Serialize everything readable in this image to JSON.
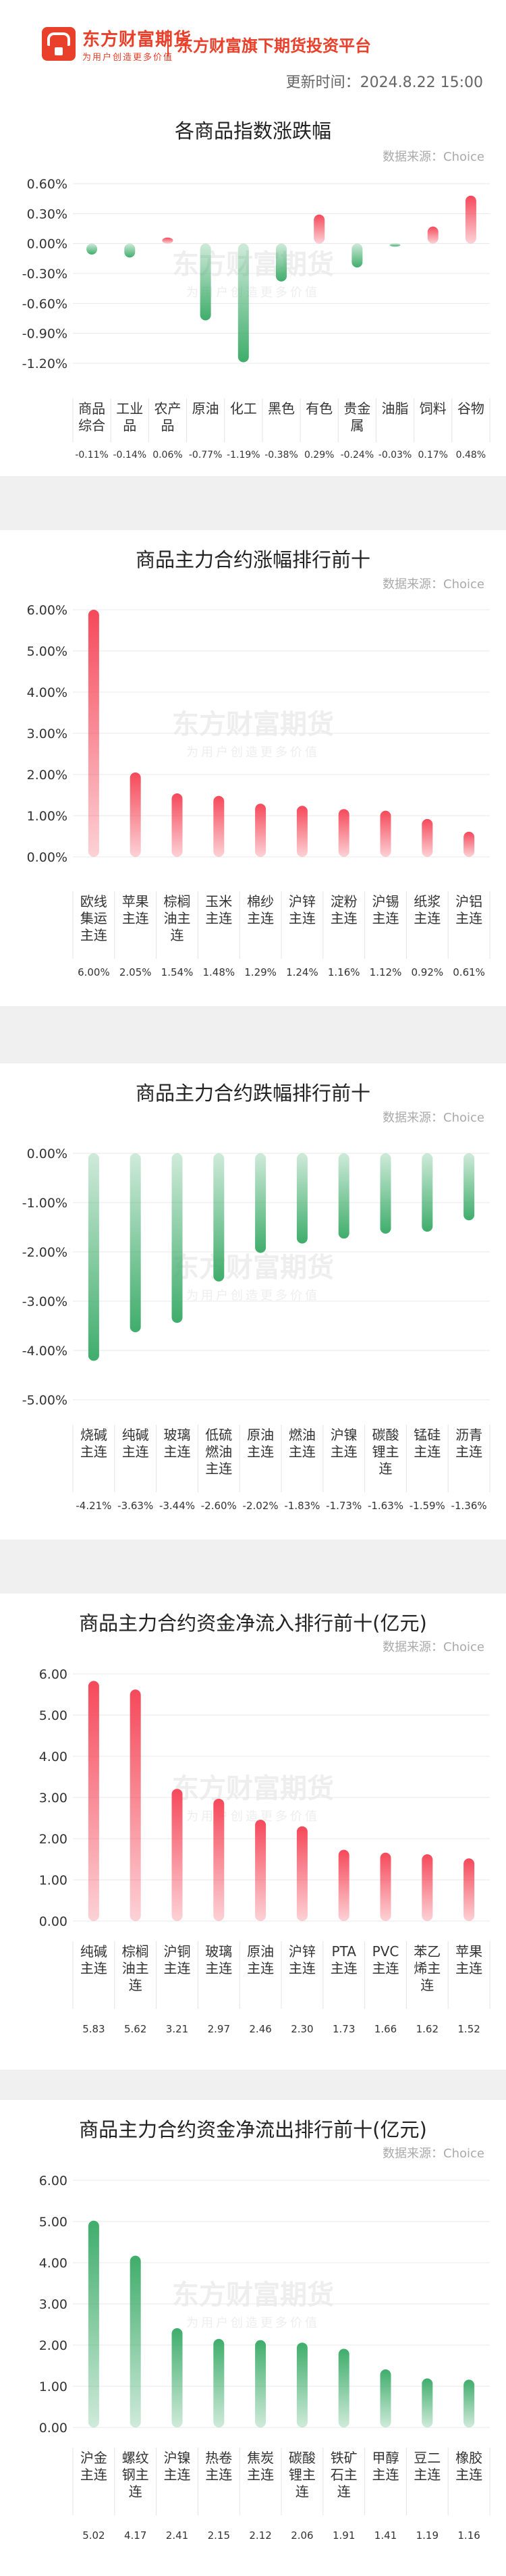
{
  "header": {
    "logo_name": "东方财富期货",
    "logo_slogan": "为用户创造更多价值",
    "platform": "东方财富旗下期货投资平台",
    "update_time": "更新时间：2024.8.22 15:00"
  },
  "watermark": {
    "name": "东方财富期货",
    "slogan": "为用户创造更多价值"
  },
  "chart_data": [
    {
      "type": "bar",
      "title": "各商品指数涨跌幅",
      "source": "数据来源：Choice",
      "categories": [
        "商品综合",
        "工业品",
        "农产品",
        "原油",
        "化工",
        "黑色",
        "有色",
        "贵金属",
        "油脂",
        "饲料",
        "谷物"
      ],
      "values": [
        -0.11,
        -0.14,
        0.06,
        -0.77,
        -1.19,
        -0.38,
        0.29,
        -0.24,
        -0.03,
        0.17,
        0.48
      ],
      "value_labels": [
        "-0.11%",
        "-0.14%",
        "0.06%",
        "-0.77%",
        "-1.19%",
        "-0.38%",
        "0.29%",
        "-0.24%",
        "-0.03%",
        "0.17%",
        "0.48%"
      ],
      "yticks": [
        "0.60%",
        "0.30%",
        "0.00%",
        "-0.30%",
        "-0.60%",
        "-0.90%",
        "-1.20%"
      ],
      "ylim": [
        -1.2,
        0.6
      ],
      "colors": {
        "up": "#f5495a",
        "down": "#3fad6b"
      }
    },
    {
      "type": "bar",
      "title": "商品主力合约涨幅排行前十",
      "source": "数据来源：Choice",
      "categories": [
        "欧线集运主连",
        "苹果主连",
        "棕榈油主连",
        "玉米主连",
        "棉纱主连",
        "沪锌主连",
        "淀粉主连",
        "沪锡主连",
        "纸浆主连",
        "沪铝主连"
      ],
      "values": [
        6.0,
        2.05,
        1.54,
        1.48,
        1.29,
        1.24,
        1.16,
        1.12,
        0.92,
        0.61
      ],
      "value_labels": [
        "6.00%",
        "2.05%",
        "1.54%",
        "1.48%",
        "1.29%",
        "1.24%",
        "1.16%",
        "1.12%",
        "0.92%",
        "0.61%"
      ],
      "yticks": [
        "6.00%",
        "5.00%",
        "4.00%",
        "3.00%",
        "2.00%",
        "1.00%",
        "0.00%"
      ],
      "ylim": [
        0,
        6
      ],
      "colors": {
        "up": "#f5495a",
        "down": "#3fad6b"
      }
    },
    {
      "type": "bar",
      "title": "商品主力合约跌幅排行前十",
      "source": "数据来源：Choice",
      "categories": [
        "烧碱主连",
        "纯碱主连",
        "玻璃主连",
        "低硫燃油主连",
        "原油主连",
        "燃油主连",
        "沪镍主连",
        "碳酸锂主连",
        "锰硅主连",
        "沥青主连"
      ],
      "values": [
        -4.21,
        -3.63,
        -3.44,
        -2.6,
        -2.02,
        -1.83,
        -1.73,
        -1.63,
        -1.59,
        -1.36
      ],
      "value_labels": [
        "-4.21%",
        "-3.63%",
        "-3.44%",
        "-2.60%",
        "-2.02%",
        "-1.83%",
        "-1.73%",
        "-1.63%",
        "-1.59%",
        "-1.36%"
      ],
      "yticks": [
        "0.00%",
        "-1.00%",
        "-2.00%",
        "-3.00%",
        "-4.00%",
        "-5.00%"
      ],
      "ylim": [
        -5,
        0
      ],
      "colors": {
        "up": "#f5495a",
        "down": "#3fad6b"
      }
    },
    {
      "type": "bar",
      "title": "商品主力合约资金净流入排行前十(亿元)",
      "source": "数据来源：Choice",
      "categories": [
        "纯碱主连",
        "棕榈油主连",
        "沪铜主连",
        "玻璃主连",
        "原油主连",
        "沪锌主连",
        "PTA主连",
        "PVC主连",
        "苯乙烯主连",
        "苹果主连"
      ],
      "values": [
        5.83,
        5.62,
        3.21,
        2.97,
        2.46,
        2.3,
        1.73,
        1.66,
        1.62,
        1.52
      ],
      "value_labels": [
        "5.83",
        "5.62",
        "3.21",
        "2.97",
        "2.46",
        "2.30",
        "1.73",
        "1.66",
        "1.62",
        "1.52"
      ],
      "yticks": [
        "6.00",
        "5.00",
        "4.00",
        "3.00",
        "2.00",
        "1.00",
        "0.00"
      ],
      "ylim": [
        0,
        6
      ],
      "colors": {
        "up": "#f5495a",
        "down": "#3fad6b"
      }
    },
    {
      "type": "bar",
      "title": "商品主力合约资金净流出排行前十(亿元)",
      "source": "数据来源：Choice",
      "categories": [
        "沪金主连",
        "螺纹钢主连",
        "沪镍主连",
        "热卷主连",
        "焦炭主连",
        "碳酸锂主连",
        "铁矿石主连",
        "甲醇主连",
        "豆二主连",
        "橡胶主连"
      ],
      "values": [
        5.02,
        4.17,
        2.41,
        2.15,
        2.12,
        2.06,
        1.91,
        1.41,
        1.19,
        1.16
      ],
      "value_labels": [
        "5.02",
        "4.17",
        "2.41",
        "2.15",
        "2.12",
        "2.06",
        "1.91",
        "1.41",
        "1.19",
        "1.16"
      ],
      "yticks": [
        "6.00",
        "5.00",
        "4.00",
        "3.00",
        "2.00",
        "1.00",
        "0.00"
      ],
      "ylim": [
        0,
        6
      ],
      "colors": {
        "up": "#3fad6b",
        "down": "#3fad6b"
      }
    }
  ]
}
